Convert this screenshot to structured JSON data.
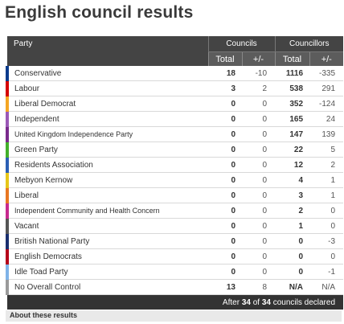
{
  "title": "English council results",
  "headers": {
    "party": "Party",
    "councils": "Councils",
    "councillors": "Councillors",
    "total": "Total",
    "change": "+/-"
  },
  "rows": [
    {
      "party": "Conservative",
      "councils": "18",
      "councils_change": "-10",
      "councillors": "1116",
      "councillors_change": "-335",
      "color": "#0a3b8c"
    },
    {
      "party": "Labour",
      "councils": "3",
      "councils_change": "2",
      "councillors": "538",
      "councillors_change": "291",
      "color": "#d50000"
    },
    {
      "party": "Liberal Democrat",
      "councils": "0",
      "councils_change": "0",
      "councillors": "352",
      "councillors_change": "-124",
      "color": "#f5a623"
    },
    {
      "party": "Independent",
      "councils": "0",
      "councils_change": "0",
      "councillors": "165",
      "councillors_change": "24",
      "color": "#9b59b6"
    },
    {
      "party": "United Kingdom Independence Party",
      "councils": "0",
      "councils_change": "0",
      "councillors": "147",
      "councillors_change": "139",
      "color": "#7a2a8c"
    },
    {
      "party": "Green Party",
      "councils": "0",
      "councils_change": "0",
      "councillors": "22",
      "councillors_change": "5",
      "color": "#43b02a"
    },
    {
      "party": "Residents Association",
      "councils": "0",
      "councils_change": "0",
      "councillors": "12",
      "councillors_change": "2",
      "color": "#2b5fb4"
    },
    {
      "party": "Mebyon Kernow",
      "councils": "0",
      "councils_change": "0",
      "councillors": "4",
      "councillors_change": "1",
      "color": "#e6c619"
    },
    {
      "party": "Liberal",
      "councils": "0",
      "councils_change": "0",
      "councillors": "3",
      "councillors_change": "1",
      "color": "#e87722"
    },
    {
      "party": "Independent Community and Health Concern",
      "councils": "0",
      "councils_change": "0",
      "councillors": "2",
      "councillors_change": "0",
      "color": "#c72a8f"
    },
    {
      "party": "Vacant",
      "councils": "0",
      "councils_change": "0",
      "councillors": "1",
      "councillors_change": "0",
      "color": "#555555"
    },
    {
      "party": "British National Party",
      "councils": "0",
      "councils_change": "0",
      "councillors": "0",
      "councillors_change": "-3",
      "color": "#1a2f6e"
    },
    {
      "party": "English Democrats",
      "councils": "0",
      "councils_change": "0",
      "councillors": "0",
      "councillors_change": "0",
      "color": "#b5001a"
    },
    {
      "party": "Idle Toad Party",
      "councils": "0",
      "councils_change": "0",
      "councillors": "0",
      "councillors_change": "-1",
      "color": "#7fb3e8"
    },
    {
      "party": "No Overall Control",
      "councils": "13",
      "councils_change": "8",
      "councillors": "N/A",
      "councillors_change": "N/A",
      "color": "#9a9a9a"
    }
  ],
  "footer": {
    "prefix": "After ",
    "declared": "34",
    "middle": " of ",
    "total": "34",
    "suffix": " councils declared"
  },
  "about_link": "About these results"
}
